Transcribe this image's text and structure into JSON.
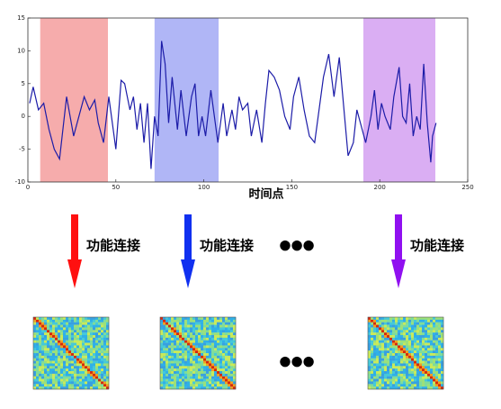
{
  "chart_data": {
    "type": "line",
    "xlabel": "时间点",
    "x": [
      1,
      3,
      6,
      9,
      12,
      15,
      18,
      22,
      26,
      29,
      32,
      35,
      38,
      40,
      43,
      46,
      50,
      53,
      55,
      58,
      60,
      62,
      64,
      66,
      68,
      70,
      72,
      74,
      76,
      78,
      80,
      82,
      85,
      87,
      90,
      93,
      95,
      97,
      99,
      101,
      104,
      108,
      111,
      113,
      116,
      118,
      120,
      122,
      125,
      127,
      130,
      133,
      135,
      137,
      140,
      143,
      146,
      149,
      151,
      154,
      157,
      160,
      163,
      166,
      168,
      171,
      174,
      177,
      180,
      182,
      185,
      187,
      190,
      192,
      195,
      197,
      199,
      201,
      203,
      206,
      208,
      211,
      213,
      215,
      217,
      219,
      221,
      223,
      225,
      227,
      229,
      230,
      232
    ],
    "series": [
      {
        "color": "#1c1ca8",
        "values": [
          2,
          4.5,
          1,
          2,
          -2,
          -5,
          -6.5,
          3,
          -3,
          0,
          3,
          1,
          2.5,
          -1,
          -4,
          3,
          -5,
          5.5,
          5,
          1,
          3,
          -2,
          2,
          -4,
          2,
          -8,
          0,
          -3,
          11.5,
          8,
          -1,
          6,
          -2,
          4,
          -3,
          3,
          5,
          -3,
          0,
          -3,
          4,
          -4,
          2,
          -3,
          1,
          -2,
          3,
          1,
          2,
          -3,
          1,
          -4,
          2,
          7,
          6,
          4,
          0,
          -2,
          3,
          6,
          1,
          -3,
          -4,
          2,
          6,
          9.5,
          3,
          9,
          0,
          -6,
          -4,
          1,
          -2,
          -4,
          0,
          4,
          -2,
          2,
          0,
          -2,
          3,
          7.5,
          0,
          -1,
          5,
          -3,
          0,
          -2,
          8,
          -1,
          -7,
          -3,
          -1
        ]
      }
    ],
    "xlim": [
      0,
      250
    ],
    "ylim": [
      -10,
      15
    ],
    "xticks": [
      0,
      50,
      100,
      150,
      200,
      250
    ],
    "yticks": [
      -10,
      -5,
      0,
      5,
      10,
      15
    ],
    "windows": [
      {
        "start": 7,
        "end": 45.5,
        "color": "#f5a3a3"
      },
      {
        "start": 72,
        "end": 108.4,
        "color": "#a7aef5"
      },
      {
        "start": 190.7,
        "end": 231.6,
        "color": "#d6a5f2"
      }
    ]
  },
  "steps": [
    {
      "label": "功能连接",
      "color": "#ff1010"
    },
    {
      "label": "功能连接",
      "color": "#1030f0"
    },
    {
      "label": "功能连接",
      "color": "#9010f0"
    }
  ],
  "ellipsis": [
    "●●●",
    "●●●"
  ]
}
